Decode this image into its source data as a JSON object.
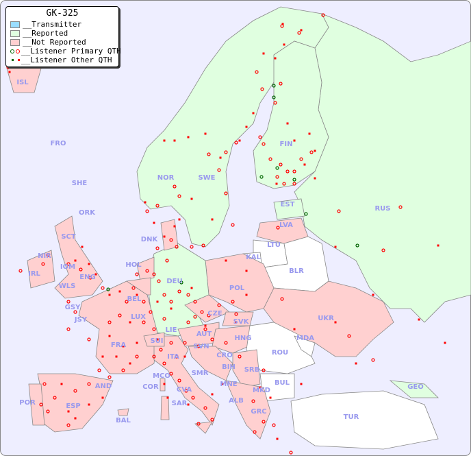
{
  "legend": {
    "title": "GK-325",
    "items": [
      {
        "label": "__Transmitter",
        "color": "#99ddff"
      },
      {
        "label": "__Reported",
        "color": "#e0ffe0"
      },
      {
        "label": "__Not Reported",
        "color": "#ffd0d0"
      },
      {
        "label": "__Listener Primary QTH",
        "colors": [
          "#006600",
          "#ff0000"
        ]
      },
      {
        "label": "__Listener Other QTH",
        "colors": [
          "#006600",
          "#ff0000"
        ]
      }
    ]
  },
  "countries": {
    "reported": [
      "NOR",
      "SWE",
      "FIN",
      "RUS",
      "EST",
      "DEU",
      "GEO"
    ],
    "not_reported": [
      "ISL",
      "IRL",
      "NIR",
      "SCT",
      "ENG",
      "WLS",
      "IOM",
      "GSY",
      "JSY",
      "FRA",
      "ESP",
      "POR",
      "BAL",
      "COR",
      "SAR",
      "ITA",
      "SUI",
      "LIE",
      "HOL",
      "BEL",
      "LUX",
      "DNK",
      "POL",
      "LVA",
      "UKR",
      "CZE",
      "SVK",
      "AUT",
      "HNG",
      "SVN",
      "CRO",
      "BIH",
      "SRB",
      "MNE",
      "ALB",
      "MKD",
      "GRC",
      "MCO",
      "CVA",
      "SMR"
    ],
    "none": [
      "LTU",
      "KAL",
      "BLR",
      "ROU",
      "MDA",
      "BUL",
      "TUR"
    ]
  },
  "labels": [
    "ISL",
    "FRO",
    "SHE",
    "ORK",
    "NOR",
    "SWE",
    "FIN",
    "EST",
    "RUS",
    "LVA",
    "LTU",
    "KAL",
    "BLR",
    "DNK",
    "SCT",
    "NIR",
    "IRL",
    "IOM",
    "ENG",
    "WLS",
    "HOL",
    "BEL",
    "DEU",
    "POL",
    "GSY",
    "JSY",
    "LUX",
    "CZE",
    "SVK",
    "UKR",
    "FRA",
    "LIE",
    "AUT",
    "HNG",
    "MDA",
    "SUI",
    "SVN",
    "CRO",
    "ROU",
    "ITA",
    "SMR",
    "BIH",
    "SRB",
    "MCO",
    "COR",
    "CVA",
    "MNE",
    "BUL",
    "GEO",
    "AND",
    "ALB",
    "MKD",
    "POR",
    "ESP",
    "SAR",
    "GRC",
    "BAL",
    "TUR"
  ],
  "colors": {
    "sea": "#eeeeff",
    "reported": "#e0ffe0",
    "not_reported": "#ffd0d0",
    "none": "#ffffff",
    "label": "#9999ee",
    "listener": "#ff0000",
    "listener_green": "#006600"
  }
}
